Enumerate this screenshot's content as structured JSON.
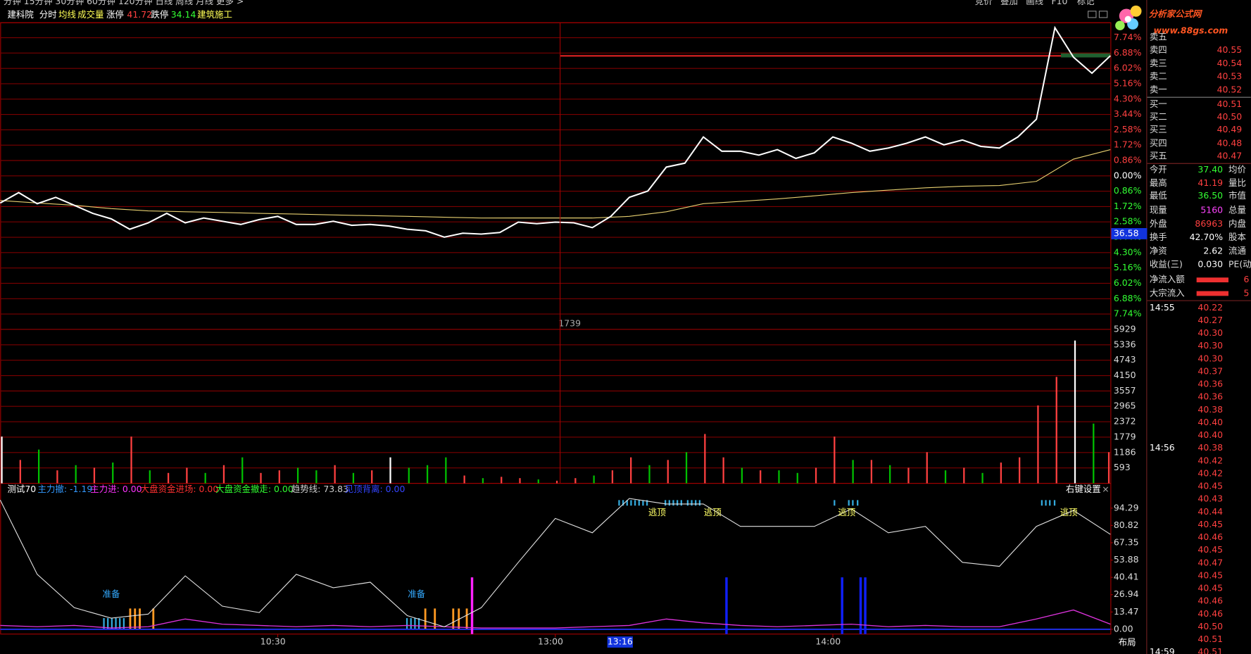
{
  "toolbar": {
    "left": "分钟  15分钟  30分钟  60分钟  120分钟  日线  周线  月线  更多 >",
    "right": [
      "竞价",
      "叠加",
      "画线",
      "F10",
      "标记"
    ]
  },
  "info_bar": [
    "建科院",
    "分时",
    "均线",
    "成交量",
    "涨停",
    "41.72",
    "跌停",
    "34.14",
    "建筑施工"
  ],
  "logo": {
    "title": "分析家公式网",
    "url": "www.88gs.com"
  },
  "price_chart": {
    "type": "line",
    "xlim": [
      0,
      240
    ],
    "ylim": [
      -8.6,
      8.6
    ],
    "grid": true,
    "yticks": [
      {
        "value": 7.74,
        "label": "7.74%"
      },
      {
        "value": 6.88,
        "label": "6.88%"
      },
      {
        "value": 6.02,
        "label": "6.02%"
      },
      {
        "value": 5.16,
        "label": "5.16%"
      },
      {
        "value": 4.3,
        "label": "4.30%"
      },
      {
        "value": 3.44,
        "label": "3.44%"
      },
      {
        "value": 2.58,
        "label": "2.58%"
      },
      {
        "value": 1.72,
        "label": "1.72%"
      },
      {
        "value": 0.86,
        "label": "0.86%"
      },
      {
        "value": 0,
        "label": "0.00%"
      },
      {
        "value": -0.86,
        "label": "0.86%"
      },
      {
        "value": -1.72,
        "label": "1.72%"
      },
      {
        "value": -2.58,
        "label": "2.58%"
      },
      {
        "value": -3.44,
        "label": "3.44%"
      },
      {
        "value": -4.3,
        "label": "4.30%"
      },
      {
        "value": -5.16,
        "label": "5.16%"
      },
      {
        "value": -6.02,
        "label": "6.02%"
      },
      {
        "value": -6.88,
        "label": "6.88%"
      },
      {
        "value": -7.74,
        "label": "7.74%"
      }
    ],
    "price": {
      "color": "#ffffff",
      "x": [
        0,
        4,
        8,
        12,
        16,
        20,
        24,
        28,
        32,
        36,
        40,
        44,
        48,
        52,
        56,
        60,
        64,
        68,
        72,
        76,
        80,
        84,
        88,
        92,
        96,
        100,
        104,
        108,
        112,
        116,
        120,
        124,
        128,
        132,
        136,
        140,
        144,
        148,
        152,
        156,
        160,
        164,
        168,
        172,
        176,
        180,
        184,
        188,
        192,
        196,
        200,
        204,
        208,
        212,
        216,
        220,
        224,
        228,
        232,
        236,
        240
      ],
      "values": [
        -1.52,
        -0.94,
        -1.56,
        -1.2,
        -1.65,
        -2.1,
        -2.41,
        -2.99,
        -2.63,
        -2.1,
        -2.63,
        -2.36,
        -2.54,
        -2.72,
        -2.45,
        -2.27,
        -2.72,
        -2.72,
        -2.54,
        -2.77,
        -2.72,
        -2.81,
        -2.99,
        -3.08,
        -3.43,
        -3.21,
        -3.26,
        -3.17,
        -2.59,
        -2.68,
        -2.59,
        -2.63,
        -2.9,
        -2.27,
        -1.2,
        -0.85,
        0.49,
        0.71,
        2.18,
        1.38,
        1.38,
        1.16,
        1.47,
        0.98,
        1.29,
        2.18,
        1.83,
        1.38,
        1.56,
        1.83,
        2.18,
        1.74,
        2.01,
        1.65,
        1.56,
        2.18,
        3.17,
        8.3,
        6.65,
        5.75,
        6.73
      ]
    },
    "average": {
      "color": "#e8d070",
      "x": [
        0,
        8,
        16,
        24,
        32,
        40,
        48,
        56,
        64,
        72,
        80,
        88,
        96,
        104,
        112,
        120,
        128,
        136,
        144,
        152,
        160,
        168,
        176,
        184,
        192,
        200,
        208,
        216,
        224,
        232,
        240
      ],
      "values": [
        -1.38,
        -1.52,
        -1.65,
        -1.83,
        -1.96,
        -2.01,
        -2.05,
        -2.1,
        -2.14,
        -2.19,
        -2.23,
        -2.27,
        -2.32,
        -2.36,
        -2.36,
        -2.36,
        -2.36,
        -2.27,
        -2.01,
        -1.56,
        -1.43,
        -1.29,
        -1.12,
        -0.94,
        -0.8,
        -0.67,
        -0.58,
        -0.54,
        -0.31,
        0.94,
        1.47
      ]
    },
    "cursor_price": "36.58",
    "cursor_volume": "1739"
  },
  "volume_chart": {
    "type": "bar",
    "xlim": [
      0,
      240
    ],
    "ylim": [
      0,
      5929
    ],
    "grid": true,
    "yticks": [
      5929,
      5336,
      4743,
      4150,
      3557,
      2965,
      2372,
      1779,
      1186,
      593
    ],
    "x": [
      0,
      4,
      8,
      12,
      16,
      20,
      24,
      28,
      32,
      36,
      40,
      44,
      48,
      52,
      56,
      60,
      64,
      68,
      72,
      76,
      80,
      84,
      88,
      92,
      96,
      100,
      104,
      108,
      112,
      116,
      120,
      124,
      128,
      132,
      136,
      140,
      144,
      148,
      152,
      156,
      160,
      164,
      168,
      172,
      176,
      180,
      184,
      188,
      192,
      196,
      200,
      204,
      208,
      212,
      216,
      220,
      224,
      228,
      232,
      236,
      240
    ],
    "values": [
      1800,
      900,
      1300,
      500,
      700,
      600,
      800,
      1800,
      500,
      400,
      600,
      400,
      700,
      1000,
      400,
      500,
      600,
      500,
      700,
      400,
      500,
      1000,
      600,
      700,
      1000,
      300,
      200,
      250,
      200,
      150,
      100,
      200,
      300,
      500,
      1000,
      700,
      900,
      1200,
      1900,
      1000,
      600,
      500,
      500,
      400,
      600,
      1800,
      900,
      900,
      700,
      600,
      1200,
      500,
      600,
      400,
      800,
      1000,
      3000,
      4100,
      5500,
      2300,
      1200
    ],
    "colors": [
      "#ffffff",
      "#ff4040",
      "#00c000",
      "#ff4040",
      "#00c000",
      "#ff4040",
      "#00c000",
      "#ff4040",
      "#00c000",
      "#ff4040",
      "#ff4040",
      "#00c000",
      "#ff4040",
      "#00c000",
      "#ff4040",
      "#ff4040",
      "#00c000",
      "#00c000",
      "#ff4040",
      "#00c000",
      "#ff4040",
      "#ffffff",
      "#00c000",
      "#00c000",
      "#00c000",
      "#ff4040",
      "#00c000",
      "#ff4040",
      "#ff4040",
      "#00c000",
      "#ff4040",
      "#ff4040",
      "#00c000",
      "#ff4040",
      "#ff4040",
      "#00c000",
      "#ff4040",
      "#00c000",
      "#ff4040",
      "#ff4040",
      "#00c000",
      "#ff4040",
      "#00c000",
      "#00c000",
      "#ff4040",
      "#ff4040",
      "#00c000",
      "#ff4040",
      "#00c000",
      "#ff4040",
      "#ff4040",
      "#00c000",
      "#ff4040",
      "#00c000",
      "#ff4040",
      "#ff4040",
      "#ff4040",
      "#ff4040",
      "#ffffff",
      "#00c000",
      "#ff4040"
    ]
  },
  "indicator_chart": {
    "type": "line",
    "header": [
      {
        "text": "测试70",
        "color": "#ffffff"
      },
      {
        "text": "主力撤: -1.19",
        "color": "#3399ff"
      },
      {
        "text": "主力进: 0.00",
        "color": "#ff33ff"
      },
      {
        "text": "大盘资金进场: 0.00",
        "color": "#ff3030"
      },
      {
        "text": "大盘资金撤走: 0.00",
        "color": "#30ff30"
      },
      {
        "text": "趋势线: 73.83",
        "color": "#d0d0d0"
      },
      {
        "text": "见顶背离: 0.00",
        "color": "#3344ff"
      }
    ],
    "settings": "右键设置",
    "close": "×",
    "xlim": [
      0,
      240
    ],
    "ylim": [
      -3.72,
      113.6
    ],
    "yticks": [
      94.29,
      80.82,
      67.35,
      53.88,
      40.41,
      26.94,
      13.47,
      {
        "value": 0,
        "label": "0.00"
      }
    ],
    "trend": {
      "color": "#e0e0e0",
      "x": [
        0,
        8,
        16,
        24,
        32,
        40,
        48,
        56,
        64,
        72,
        80,
        88,
        96,
        104,
        112,
        120,
        128,
        136,
        144,
        152,
        160,
        168,
        176,
        184,
        192,
        200,
        208,
        216,
        224,
        232,
        240
      ],
      "values": [
        100.6,
        42.8,
        16.8,
        8.7,
        11.8,
        41.6,
        18.0,
        13.0,
        42.8,
        32.3,
        36.6,
        10.6,
        1.9,
        16.8,
        52.1,
        86.3,
        75.1,
        101.8,
        97.5,
        97.5,
        80.1,
        80.1,
        80.1,
        93.7,
        75.1,
        80.1,
        52.1,
        49.0,
        80.1,
        92.5,
        73.9
      ]
    },
    "flow": {
      "color": "#dd33dd",
      "x": [
        0,
        8,
        16,
        24,
        32,
        40,
        48,
        56,
        64,
        72,
        80,
        88,
        96,
        104,
        112,
        120,
        128,
        136,
        144,
        152,
        160,
        168,
        176,
        184,
        192,
        200,
        208,
        216,
        224,
        232,
        240
      ],
      "values": [
        3,
        2,
        3,
        1,
        2,
        8,
        4,
        3,
        2,
        3,
        2,
        3,
        2,
        1,
        1,
        1,
        2,
        3,
        8,
        5,
        3,
        2,
        3,
        4,
        2,
        3,
        2,
        2,
        8,
        15,
        4
      ]
    },
    "signals": {
      "x": [
        102,
        157,
        182,
        186,
        187
      ],
      "values": [
        40.41,
        40.41,
        40.41,
        40.41,
        40.41
      ],
      "colors": [
        "#ff22ff",
        "#1020ff",
        "#1020ff",
        "#1020ff",
        "#1020ff"
      ]
    },
    "labels": [
      {
        "text": "准备",
        "x": 24,
        "y": 26.94,
        "color": "#33aaff"
      },
      {
        "text": "准备",
        "x": 90,
        "y": 26.94,
        "color": "#33aaff"
      },
      {
        "text": "逃顶",
        "x": 142,
        "y": 113.6,
        "color": "#ffff66"
      },
      {
        "text": "逃顶",
        "x": 154,
        "y": 113.6,
        "color": "#ffff66"
      },
      {
        "text": "逃顶",
        "x": 183,
        "y": 113.6,
        "color": "#ffff66"
      },
      {
        "text": "逃顶",
        "x": 231,
        "y": 113.6,
        "color": "#ffff66"
      }
    ]
  },
  "time_axis": {
    "xticks": [
      {
        "value": 60,
        "label": "10:30"
      },
      {
        "value": 120,
        "label": "13:00"
      },
      {
        "value": 180,
        "label": "14:00"
      }
    ],
    "session_break": 120,
    "cursor": {
      "value": 134,
      "label": "13:16"
    },
    "layout_button": "布局"
  },
  "order_book": [
    {
      "label": "卖五"
    },
    {
      "label": "卖四",
      "price": "40.55"
    },
    {
      "label": "卖三",
      "price": "40.54"
    },
    {
      "label": "卖二",
      "price": "40.53"
    },
    {
      "label": "卖一",
      "price": "40.52"
    },
    {
      "label": "买一",
      "price": "40.51"
    },
    {
      "label": "买二",
      "price": "40.50"
    },
    {
      "label": "买三",
      "price": "40.49"
    },
    {
      "label": "买四",
      "price": "40.48"
    },
    {
      "label": "买五",
      "price": "40.47"
    }
  ],
  "stats": [
    {
      "label": "今开",
      "value": "37.40",
      "right": "均价",
      "color": "#33ff33"
    },
    {
      "label": "最高",
      "value": "41.19",
      "right": "量比",
      "color": "#ff4040"
    },
    {
      "label": "最低",
      "value": "36.50",
      "right": "市值",
      "color": "#33ff33"
    },
    {
      "label": "现量",
      "value": "5160",
      "right": "总量",
      "color": "#ff44ff"
    },
    {
      "label": "外盘",
      "value": "86963",
      "right": "内盘",
      "color": "#ff4040"
    },
    {
      "label": "换手",
      "value": "42.70%",
      "right": "股本",
      "color": "#ffffff"
    },
    {
      "label": "净资",
      "value": "2.62",
      "right": "流通",
      "color": "#ffffff"
    },
    {
      "label": "收益(三)",
      "value": "0.030",
      "right": "PE(动)",
      "color": "#ffffff"
    }
  ],
  "fund_flow": [
    {
      "label": "净流入额",
      "value": "6"
    },
    {
      "label": "大宗流入",
      "value": "5"
    }
  ],
  "trades": [
    {
      "time": "14:55",
      "prices": [
        "40.22",
        "40.27",
        "40.30",
        "40.30",
        "40.30",
        "40.37",
        "40.36",
        "40.36",
        "40.38",
        "40.40",
        "40.40"
      ]
    },
    {
      "time": "14:56",
      "prices": [
        "40.38",
        "40.42",
        "40.42",
        "40.45",
        "40.43",
        "40.44",
        "40.45",
        "40.46",
        "40.45",
        "40.47",
        "40.45",
        "40.45",
        "40.46",
        "40.46",
        "40.50",
        "40.51"
      ]
    },
    {
      "time": "14:59",
      "prices": [
        "40.51"
      ]
    }
  ]
}
